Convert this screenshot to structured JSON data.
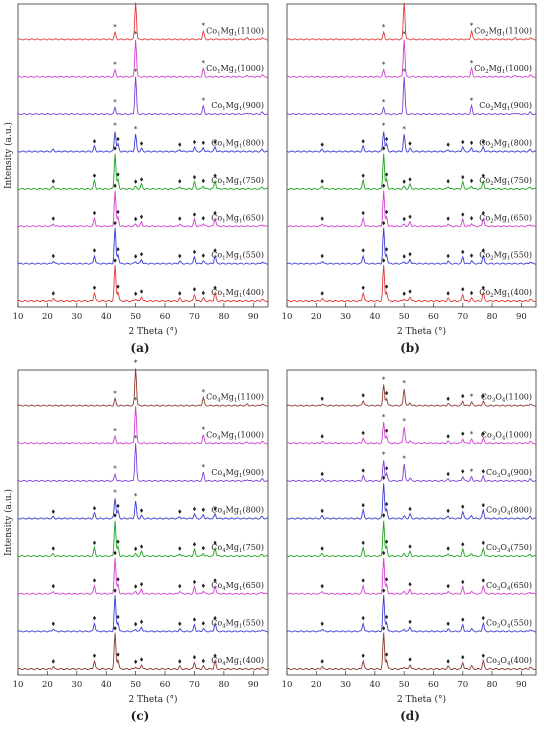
{
  "figure": {
    "colors": {
      "red": "#e23a3a",
      "magenta": "#d23fd2",
      "purple": "#7b3fd6",
      "blue": "#3b3bd6",
      "green": "#1fa31f",
      "brown": "#8b3a2e"
    }
  },
  "chart_data": [
    {
      "panel": "(a)",
      "type": "line",
      "xlabel": "2 Theta (°)",
      "ylabel": "Intensity (a.u.)",
      "xlim": [
        10,
        95
      ],
      "xticks": [
        10,
        20,
        30,
        40,
        50,
        60,
        70,
        80,
        90
      ],
      "series": [
        {
          "name": "Co1Mg1(1100)",
          "label_main": "Co",
          "s1": "1",
          "mid": "Mg",
          "s2": "1",
          "temp": "(1100)",
          "color": "#e23a3a",
          "phase": "rock",
          "stars": [
            43,
            50,
            73
          ],
          "diamonds": []
        },
        {
          "name": "Co1Mg1(1000)",
          "label_main": "Co",
          "s1": "1",
          "mid": "Mg",
          "s2": "1",
          "temp": "(1000)",
          "color": "#d23fd2",
          "phase": "rock",
          "stars": [
            43,
            50,
            73
          ],
          "diamonds": []
        },
        {
          "name": "Co1Mg1(900)",
          "label_main": "Co",
          "s1": "1",
          "mid": "Mg",
          "s2": "1",
          "temp": "(900)",
          "color": "#7b3fd6",
          "phase": "rock",
          "stars": [
            43,
            50,
            73
          ],
          "diamonds": []
        },
        {
          "name": "Co1Mg1(800)",
          "label_main": "Co",
          "s1": "1",
          "mid": "Mg",
          "s2": "1",
          "temp": "(800)",
          "color": "#3b3bd6",
          "phase": "mix",
          "stars": [
            43,
            50
          ],
          "diamonds": [
            36,
            44,
            52,
            65,
            70,
            73,
            77
          ]
        },
        {
          "name": "Co1Mg1(750)",
          "label_main": "Co",
          "s1": "1",
          "mid": "Mg",
          "s2": "1",
          "temp": "(750)",
          "color": "#1fa31f",
          "phase": "spinel",
          "stars": [],
          "diamonds": [
            22,
            36,
            43,
            44,
            50,
            52,
            65,
            70,
            73,
            77
          ]
        },
        {
          "name": "Co1Mg1(650)",
          "label_main": "Co",
          "s1": "1",
          "mid": "Mg",
          "s2": "1",
          "temp": "(650)",
          "color": "#d23fd2",
          "phase": "spinel",
          "stars": [],
          "diamonds": [
            22,
            36,
            43,
            44,
            50,
            52,
            65,
            70,
            73,
            77
          ]
        },
        {
          "name": "Co1Mg1(550)",
          "label_main": "Co",
          "s1": "1",
          "mid": "Mg",
          "s2": "1",
          "temp": "(550)",
          "color": "#3b3bd6",
          "phase": "spinel",
          "stars": [],
          "diamonds": [
            22,
            36,
            43,
            44,
            50,
            52,
            65,
            70,
            73,
            77
          ]
        },
        {
          "name": "Co1Mg1(400)",
          "label_main": "Co",
          "s1": "1",
          "mid": "Mg",
          "s2": "1",
          "temp": "(400)",
          "color": "#e23a3a",
          "phase": "spinel",
          "stars": [],
          "diamonds": [
            22,
            36,
            43,
            44,
            50,
            52,
            65,
            70,
            73,
            77
          ]
        }
      ]
    },
    {
      "panel": "(b)",
      "type": "line",
      "xlabel": "2 Theta (°)",
      "ylabel": "",
      "xlim": [
        10,
        95
      ],
      "xticks": [
        10,
        20,
        30,
        40,
        50,
        60,
        70,
        80,
        90
      ],
      "series": [
        {
          "name": "Co2Mg1(1100)",
          "label_main": "Co",
          "s1": "2",
          "mid": "Mg",
          "s2": "1",
          "temp": "(1100)",
          "color": "#e23a3a",
          "phase": "rock",
          "stars": [
            43,
            50,
            73
          ],
          "diamonds": []
        },
        {
          "name": "Co2Mg1(1000)",
          "label_main": "Co",
          "s1": "2",
          "mid": "Mg",
          "s2": "1",
          "temp": "(1000)",
          "color": "#d23fd2",
          "phase": "rock",
          "stars": [
            43,
            50,
            73
          ],
          "diamonds": []
        },
        {
          "name": "Co2Mg1(900)",
          "label_main": "Co",
          "s1": "2",
          "mid": "Mg",
          "s2": "1",
          "temp": "(900)",
          "color": "#7b3fd6",
          "phase": "rock",
          "stars": [
            43,
            50,
            73
          ],
          "diamonds": []
        },
        {
          "name": "Co2Mg1(800)",
          "label_main": "Co",
          "s1": "2",
          "mid": "Mg",
          "s2": "1",
          "temp": "(800)",
          "color": "#3b3bd6",
          "phase": "mix",
          "stars": [
            43,
            50
          ],
          "diamonds": [
            22,
            36,
            44,
            52,
            65,
            70,
            73,
            77
          ]
        },
        {
          "name": "Co2Mg1(750)",
          "label_main": "Co",
          "s1": "2",
          "mid": "Mg",
          "s2": "1",
          "temp": "(750)",
          "color": "#1fa31f",
          "phase": "spinel",
          "stars": [],
          "diamonds": [
            22,
            36,
            43,
            44,
            50,
            52,
            65,
            70,
            73,
            77
          ]
        },
        {
          "name": "Co2Mg1(650)",
          "label_main": "Co",
          "s1": "2",
          "mid": "Mg",
          "s2": "1",
          "temp": "(650)",
          "color": "#d23fd2",
          "phase": "spinel",
          "stars": [],
          "diamonds": [
            22,
            36,
            43,
            44,
            50,
            52,
            65,
            70,
            73,
            77
          ]
        },
        {
          "name": "Co2Mg1(550)",
          "label_main": "Co",
          "s1": "2",
          "mid": "Mg",
          "s2": "1",
          "temp": "(550)",
          "color": "#3b3bd6",
          "phase": "spinel",
          "stars": [],
          "diamonds": [
            22,
            36,
            43,
            44,
            50,
            52,
            65,
            70,
            73,
            77
          ]
        },
        {
          "name": "Co2Mg1(400)",
          "label_main": "Co",
          "s1": "2",
          "mid": "Mg",
          "s2": "1",
          "temp": "(400)",
          "color": "#e23a3a",
          "phase": "spinel",
          "stars": [],
          "diamonds": [
            22,
            36,
            43,
            44,
            50,
            52,
            65,
            70,
            73,
            77
          ]
        }
      ]
    },
    {
      "panel": "(c)",
      "type": "line",
      "xlabel": "2 Theta (°)",
      "ylabel": "Intensity (a.u.)",
      "xlim": [
        10,
        95
      ],
      "xticks": [
        10,
        20,
        30,
        40,
        50,
        60,
        70,
        80,
        90
      ],
      "series": [
        {
          "name": "Co4Mg1(1100)",
          "label_main": "Co",
          "s1": "4",
          "mid": "Mg",
          "s2": "1",
          "temp": "(1100)",
          "color": "#8b3a2e",
          "phase": "rock",
          "stars": [
            43,
            50,
            73
          ],
          "diamonds": []
        },
        {
          "name": "Co4Mg1(1000)",
          "label_main": "Co",
          "s1": "4",
          "mid": "Mg",
          "s2": "1",
          "temp": "(1000)",
          "color": "#d23fd2",
          "phase": "rock",
          "stars": [
            43,
            50,
            73
          ],
          "diamonds": []
        },
        {
          "name": "Co4Mg1(900)",
          "label_main": "Co",
          "s1": "4",
          "mid": "Mg",
          "s2": "1",
          "temp": "(900)",
          "color": "#7b3fd6",
          "phase": "rock",
          "stars": [
            43,
            50,
            73
          ],
          "diamonds": []
        },
        {
          "name": "Co4Mg1(800)",
          "label_main": "Co",
          "s1": "4",
          "mid": "Mg",
          "s2": "1",
          "temp": "(800)",
          "color": "#3b3bd6",
          "phase": "mix",
          "stars": [
            43,
            50
          ],
          "diamonds": [
            22,
            36,
            44,
            52,
            65,
            70,
            73,
            77
          ]
        },
        {
          "name": "Co4Mg1(750)",
          "label_main": "Co",
          "s1": "4",
          "mid": "Mg",
          "s2": "1",
          "temp": "(750)",
          "color": "#1fa31f",
          "phase": "spinel",
          "stars": [],
          "diamonds": [
            22,
            36,
            43,
            44,
            50,
            52,
            65,
            70,
            73,
            77
          ]
        },
        {
          "name": "Co4Mg1(650)",
          "label_main": "Co",
          "s1": "4",
          "mid": "Mg",
          "s2": "1",
          "temp": "(650)",
          "color": "#d23fd2",
          "phase": "spinel",
          "stars": [],
          "diamonds": [
            22,
            36,
            43,
            44,
            50,
            52,
            65,
            70,
            73,
            77
          ]
        },
        {
          "name": "Co4Mg1(550)",
          "label_main": "Co",
          "s1": "4",
          "mid": "Mg",
          "s2": "1",
          "temp": "(550)",
          "color": "#3b3bd6",
          "phase": "spinel",
          "stars": [],
          "diamonds": [
            22,
            36,
            43,
            44,
            50,
            52,
            65,
            70,
            73,
            77
          ]
        },
        {
          "name": "Co4Mg1(400)",
          "label_main": "Co",
          "s1": "4",
          "mid": "Mg",
          "s2": "1",
          "temp": "(400)",
          "color": "#8b3a2e",
          "phase": "spinel",
          "stars": [],
          "diamonds": [
            22,
            36,
            43,
            44,
            50,
            52,
            65,
            70,
            73,
            77
          ]
        }
      ]
    },
    {
      "panel": "(d)",
      "type": "line",
      "xlabel": "2 Theta (°)",
      "ylabel": "",
      "xlim": [
        10,
        95
      ],
      "xticks": [
        10,
        20,
        30,
        40,
        50,
        60,
        70,
        80,
        90
      ],
      "series": [
        {
          "name": "Co3O4(1100)",
          "label_main": "Co",
          "s1": "3",
          "mid": "O",
          "s2": "4",
          "temp": "(1100)",
          "color": "#8b3a2e",
          "phase": "mix",
          "stars": [
            43,
            50,
            73
          ],
          "diamonds": [
            22,
            36,
            44,
            65,
            70,
            77
          ]
        },
        {
          "name": "Co3O4(1000)",
          "label_main": "Co",
          "s1": "3",
          "mid": "O",
          "s2": "4",
          "temp": "(1000)",
          "color": "#d23fd2",
          "phase": "mix",
          "stars": [
            43,
            50,
            73
          ],
          "diamonds": [
            22,
            36,
            44,
            65,
            70,
            77
          ]
        },
        {
          "name": "Co3O4(900)",
          "label_main": "Co",
          "s1": "3",
          "mid": "O",
          "s2": "4",
          "temp": "(900)",
          "color": "#7b3fd6",
          "phase": "mix",
          "stars": [
            43,
            50,
            73
          ],
          "diamonds": [
            22,
            36,
            44,
            65,
            70,
            77
          ]
        },
        {
          "name": "Co3O4(800)",
          "label_main": "Co",
          "s1": "3",
          "mid": "O",
          "s2": "4",
          "temp": "(800)",
          "color": "#3b3bd6",
          "phase": "spinel",
          "stars": [],
          "diamonds": [
            22,
            36,
            43,
            44,
            52,
            65,
            70,
            77
          ]
        },
        {
          "name": "Co3O4(750)",
          "label_main": "Co",
          "s1": "3",
          "mid": "O",
          "s2": "4",
          "temp": "(750)",
          "color": "#1fa31f",
          "phase": "spinel",
          "stars": [],
          "diamonds": [
            22,
            36,
            43,
            44,
            52,
            65,
            70,
            77
          ]
        },
        {
          "name": "Co3O4(650)",
          "label_main": "Co",
          "s1": "3",
          "mid": "O",
          "s2": "4",
          "temp": "(650)",
          "color": "#d23fd2",
          "phase": "spinel",
          "stars": [],
          "diamonds": [
            22,
            36,
            43,
            44,
            52,
            65,
            70,
            77
          ]
        },
        {
          "name": "Co3O4(550)",
          "label_main": "Co",
          "s1": "3",
          "mid": "O",
          "s2": "4",
          "temp": "(550)",
          "color": "#3b3bd6",
          "phase": "spinel",
          "stars": [],
          "diamonds": [
            22,
            36,
            43,
            44,
            52,
            65,
            70,
            77
          ]
        },
        {
          "name": "Co3O4(400)",
          "label_main": "Co",
          "s1": "3",
          "mid": "O",
          "s2": "4",
          "temp": "(400)",
          "color": "#8b3a2e",
          "phase": "spinel",
          "stars": [],
          "diamonds": [
            22,
            36,
            43,
            44,
            52,
            65,
            70,
            77
          ]
        }
      ]
    }
  ]
}
